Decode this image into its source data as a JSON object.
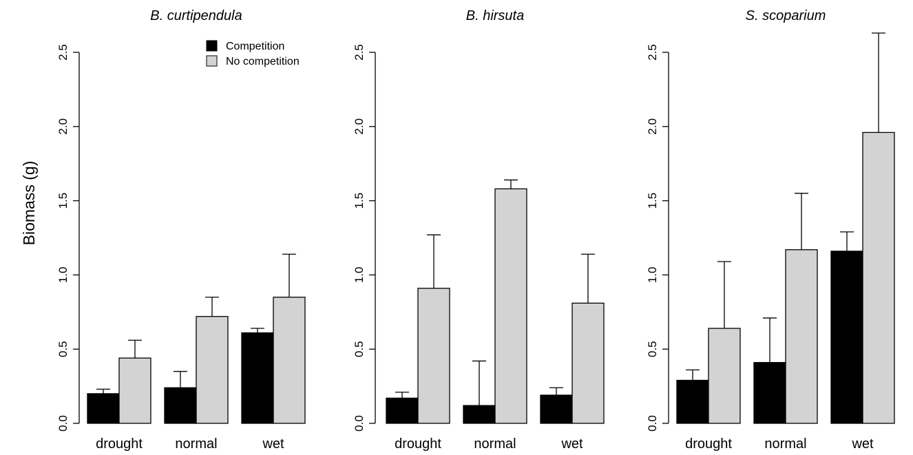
{
  "chart_data": {
    "type": "bar",
    "ylabel": "Biomass (g)",
    "ylim": [
      0,
      2.5
    ],
    "yticks": [
      "0.0",
      "0.5",
      "1.0",
      "1.5",
      "2.0",
      "2.5"
    ],
    "categories": [
      "drought",
      "normal",
      "wet"
    ],
    "legend": {
      "placement": "top-right of first panel",
      "entries": [
        "Competition",
        "No competition"
      ]
    },
    "series_colors": {
      "Competition": "#000000",
      "No competition": "#d3d3d3"
    },
    "panels": [
      {
        "title": "B. curtipendula",
        "series": [
          {
            "name": "Competition",
            "values": [
              0.2,
              0.24,
              0.61
            ],
            "upper": [
              0.23,
              0.35,
              0.64
            ]
          },
          {
            "name": "No competition",
            "values": [
              0.44,
              0.72,
              0.85
            ],
            "upper": [
              0.56,
              0.85,
              1.14
            ]
          }
        ]
      },
      {
        "title": "B. hirsuta",
        "series": [
          {
            "name": "Competition",
            "values": [
              0.17,
              0.12,
              0.19
            ],
            "upper": [
              0.21,
              0.42,
              0.24
            ]
          },
          {
            "name": "No competition",
            "values": [
              0.91,
              1.58,
              0.81
            ],
            "upper": [
              1.27,
              1.64,
              1.14
            ]
          }
        ]
      },
      {
        "title": "S. scoparium",
        "series": [
          {
            "name": "Competition",
            "values": [
              0.29,
              0.41,
              1.16
            ],
            "upper": [
              0.36,
              0.71,
              1.29
            ]
          },
          {
            "name": "No competition",
            "values": [
              0.64,
              1.17,
              1.96
            ],
            "upper": [
              1.09,
              1.55,
              2.63
            ]
          }
        ]
      }
    ]
  }
}
